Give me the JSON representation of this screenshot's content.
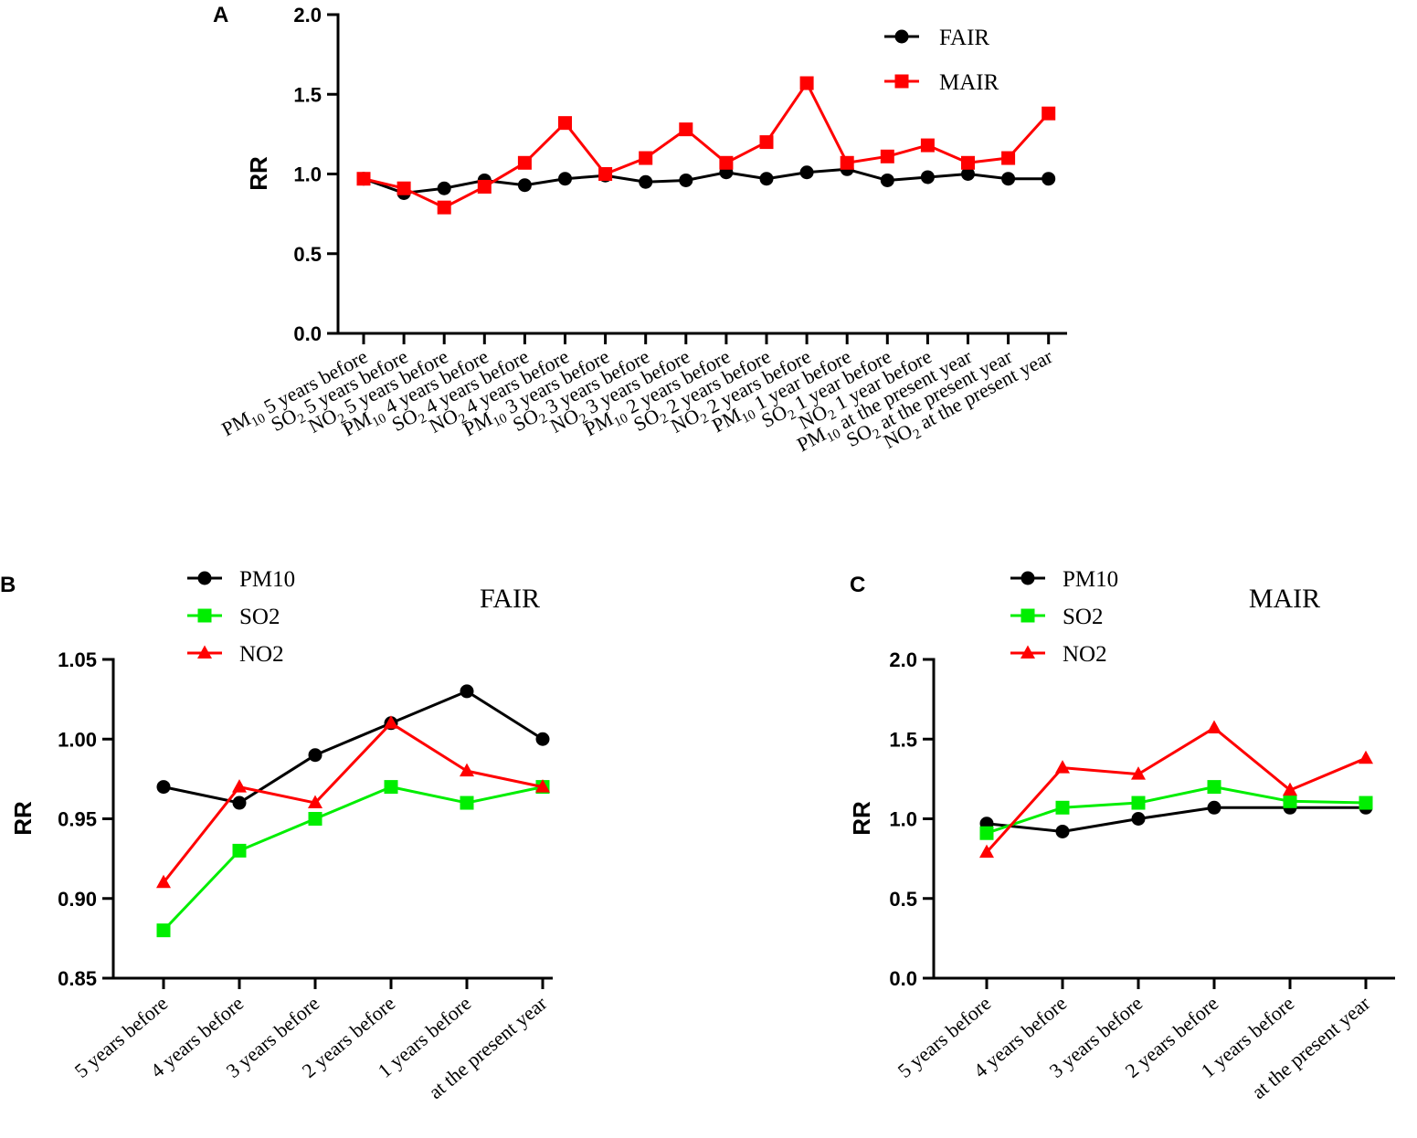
{
  "chart_data": [
    {
      "panel": "A",
      "type": "line",
      "title": "",
      "xlabel": "",
      "ylabel": "RR",
      "ylim": [
        0,
        2.0
      ],
      "yticks": [
        "0.0",
        "0.5",
        "1.0",
        "1.5",
        "2.0"
      ],
      "categories": [
        [
          "PM",
          "10",
          " 5 years before"
        ],
        [
          "SO",
          "2",
          " 5 years before"
        ],
        [
          "NO",
          "2",
          " 5 years before"
        ],
        [
          "PM",
          "10",
          " 4 years before"
        ],
        [
          "SO",
          "2",
          " 4 years before"
        ],
        [
          "NO",
          "2",
          " 4 years before"
        ],
        [
          "PM",
          "10",
          " 3 years before"
        ],
        [
          "SO",
          "2",
          " 3 years before"
        ],
        [
          "NO",
          "2",
          " 3 years before"
        ],
        [
          "PM",
          "10",
          " 2 years before"
        ],
        [
          "SO",
          "2",
          " 2 years before"
        ],
        [
          "NO",
          "2",
          " 2 years before"
        ],
        [
          "PM",
          "10",
          " 1 year before"
        ],
        [
          "SO",
          "2",
          " 1 year before"
        ],
        [
          "NO",
          "2",
          " 1 year before"
        ],
        [
          "PM",
          "10",
          " at the present year"
        ],
        [
          "SO",
          "2",
          " at the present year"
        ],
        [
          "NO",
          "2",
          " at the present year"
        ]
      ],
      "legend_position": "top-right",
      "series": [
        {
          "name": "FAIR",
          "color": "#000000",
          "marker": "circle",
          "values": [
            0.97,
            0.88,
            0.91,
            0.96,
            0.93,
            0.97,
            0.99,
            0.95,
            0.96,
            1.01,
            0.97,
            1.01,
            1.03,
            0.96,
            0.98,
            1.0,
            0.97,
            0.97
          ]
        },
        {
          "name": "MAIR",
          "color": "#ff0000",
          "marker": "square",
          "values": [
            0.97,
            0.91,
            0.79,
            0.92,
            1.07,
            1.32,
            1.0,
            1.1,
            1.28,
            1.07,
            1.2,
            1.57,
            1.07,
            1.11,
            1.18,
            1.07,
            1.1,
            1.38
          ]
        }
      ]
    },
    {
      "panel": "B",
      "type": "line",
      "title": "FAIR",
      "xlabel": "",
      "ylabel": "RR",
      "ylim": [
        0.85,
        1.05
      ],
      "yticks": [
        "0.85",
        "0.90",
        "0.95",
        "1.00",
        "1.05"
      ],
      "categories": [
        "5 years before",
        "4 years before",
        "3 years before",
        "2 years before",
        "1 years before",
        "at the present year"
      ],
      "legend_position": "top-left",
      "series": [
        {
          "name": "PM10",
          "color": "#000000",
          "marker": "circle",
          "values": [
            0.97,
            0.96,
            0.99,
            1.01,
            1.03,
            1.0
          ]
        },
        {
          "name": "SO2",
          "color": "#00ee00",
          "marker": "square",
          "values": [
            0.88,
            0.93,
            0.95,
            0.97,
            0.96,
            0.97
          ]
        },
        {
          "name": "NO2",
          "color": "#ff0000",
          "marker": "triangle",
          "values": [
            0.91,
            0.97,
            0.96,
            1.01,
            0.98,
            0.97
          ]
        }
      ]
    },
    {
      "panel": "C",
      "type": "line",
      "title": "MAIR",
      "xlabel": "",
      "ylabel": "RR",
      "ylim": [
        0,
        2.0
      ],
      "yticks": [
        "0.0",
        "0.5",
        "1.0",
        "1.5",
        "2.0"
      ],
      "categories": [
        "5 years before",
        "4 years before",
        "3 years before",
        "2 years before",
        "1 years before",
        "at the present year"
      ],
      "legend_position": "top-left",
      "series": [
        {
          "name": "PM10",
          "color": "#000000",
          "marker": "circle",
          "values": [
            0.97,
            0.92,
            1.0,
            1.07,
            1.07,
            1.07
          ]
        },
        {
          "name": "SO2",
          "color": "#00ee00",
          "marker": "square",
          "values": [
            0.91,
            1.07,
            1.1,
            1.2,
            1.11,
            1.1
          ]
        },
        {
          "name": "NO2",
          "color": "#ff0000",
          "marker": "triangle",
          "values": [
            0.79,
            1.32,
            1.28,
            1.57,
            1.18,
            1.38
          ]
        }
      ]
    }
  ]
}
